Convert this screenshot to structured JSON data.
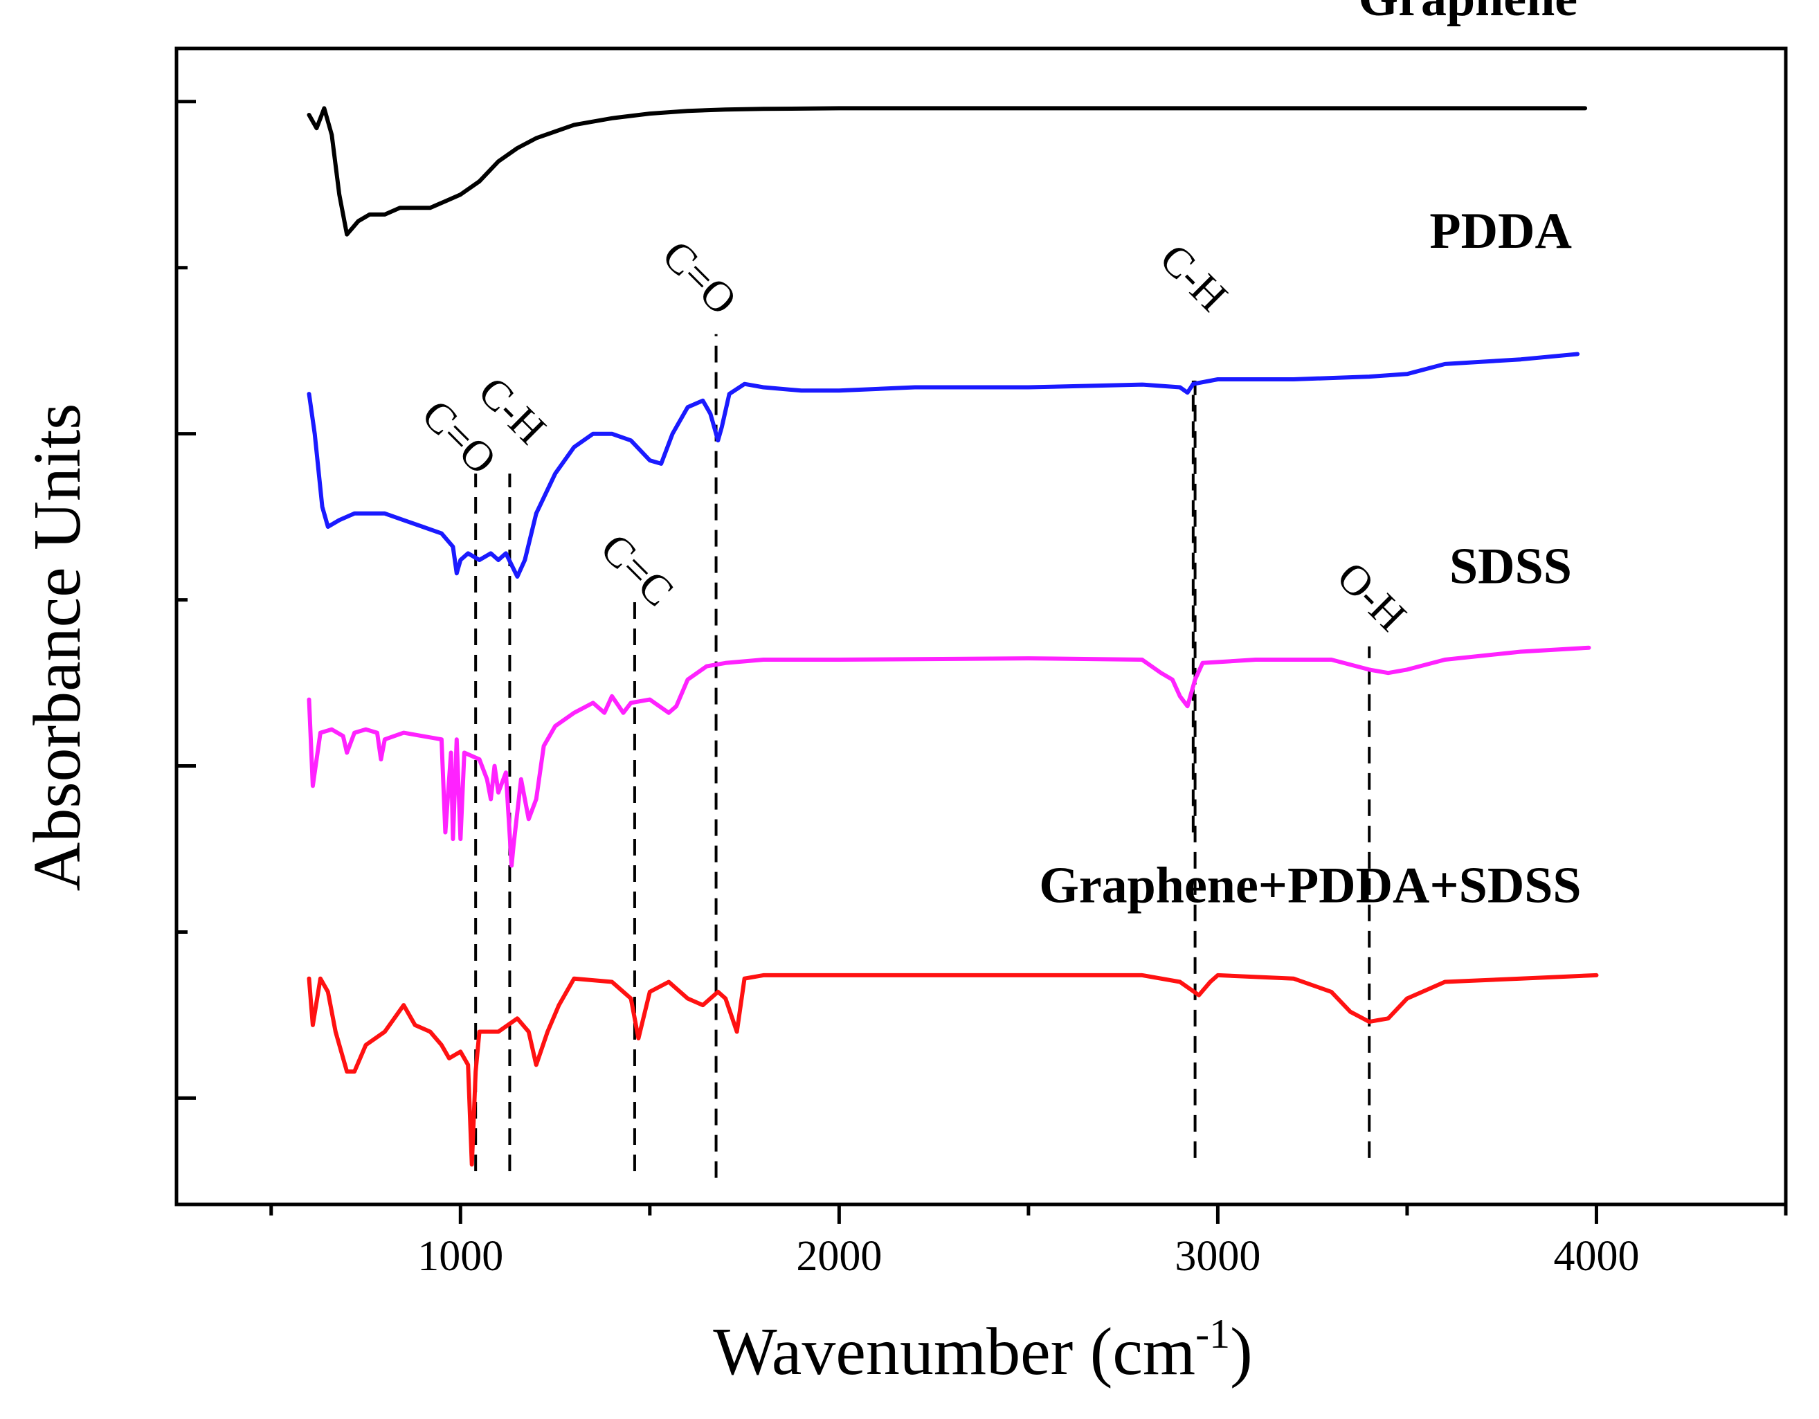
{
  "chart_data": {
    "type": "line",
    "title": "",
    "xlabel": "Wavenumber (cm",
    "xlabel_sup": "-1",
    "xlabel_close": ")",
    "ylabel": "Absorbance Units",
    "xlim": [
      250,
      4500
    ],
    "ylim": [
      -0.6,
      16.8
    ],
    "xticks": [
      1000,
      2000,
      3000,
      4000
    ],
    "xtick_labels": [
      "1000",
      "2000",
      "3000",
      "4000"
    ],
    "y_major_ticks": [
      1,
      6,
      11,
      16
    ],
    "y_minor_ticks": [
      3.5,
      8.5,
      13.5
    ],
    "y_tick_labels_shown": false,
    "grid": false,
    "legend": "none (series labelled inline on the right)",
    "series": [
      {
        "name": "Graphene",
        "label": "Graphene",
        "color": "#000000",
        "points": [
          [
            600,
            15.8
          ],
          [
            620,
            15.6
          ],
          [
            640,
            15.9
          ],
          [
            660,
            15.5
          ],
          [
            680,
            14.6
          ],
          [
            700,
            14.0
          ],
          [
            730,
            14.2
          ],
          [
            760,
            14.3
          ],
          [
            800,
            14.3
          ],
          [
            840,
            14.4
          ],
          [
            880,
            14.4
          ],
          [
            920,
            14.4
          ],
          [
            960,
            14.5
          ],
          [
            1000,
            14.6
          ],
          [
            1050,
            14.8
          ],
          [
            1100,
            15.1
          ],
          [
            1150,
            15.3
          ],
          [
            1200,
            15.45
          ],
          [
            1250,
            15.55
          ],
          [
            1300,
            15.65
          ],
          [
            1400,
            15.75
          ],
          [
            1500,
            15.82
          ],
          [
            1600,
            15.86
          ],
          [
            1700,
            15.88
          ],
          [
            1800,
            15.89
          ],
          [
            2000,
            15.9
          ],
          [
            2500,
            15.9
          ],
          [
            3000,
            15.9
          ],
          [
            3500,
            15.9
          ],
          [
            3970,
            15.9
          ]
        ]
      },
      {
        "name": "PDDA",
        "label": "PDDA",
        "color": "#1a1aff",
        "points": [
          [
            600,
            11.6
          ],
          [
            615,
            11.0
          ],
          [
            635,
            9.9
          ],
          [
            650,
            9.6
          ],
          [
            680,
            9.7
          ],
          [
            720,
            9.8
          ],
          [
            760,
            9.8
          ],
          [
            800,
            9.8
          ],
          [
            850,
            9.7
          ],
          [
            900,
            9.6
          ],
          [
            950,
            9.5
          ],
          [
            980,
            9.3
          ],
          [
            990,
            8.9
          ],
          [
            1000,
            9.1
          ],
          [
            1020,
            9.2
          ],
          [
            1050,
            9.1
          ],
          [
            1080,
            9.2
          ],
          [
            1100,
            9.1
          ],
          [
            1120,
            9.2
          ],
          [
            1150,
            8.85
          ],
          [
            1170,
            9.1
          ],
          [
            1200,
            9.8
          ],
          [
            1250,
            10.4
          ],
          [
            1300,
            10.8
          ],
          [
            1350,
            11.0
          ],
          [
            1400,
            11.0
          ],
          [
            1450,
            10.9
          ],
          [
            1500,
            10.6
          ],
          [
            1530,
            10.55
          ],
          [
            1560,
            11.0
          ],
          [
            1600,
            11.4
          ],
          [
            1640,
            11.5
          ],
          [
            1660,
            11.3
          ],
          [
            1680,
            10.9
          ],
          [
            1690,
            11.1
          ],
          [
            1710,
            11.6
          ],
          [
            1750,
            11.75
          ],
          [
            1800,
            11.7
          ],
          [
            1900,
            11.65
          ],
          [
            2000,
            11.65
          ],
          [
            2200,
            11.7
          ],
          [
            2500,
            11.7
          ],
          [
            2800,
            11.74
          ],
          [
            2900,
            11.7
          ],
          [
            2920,
            11.62
          ],
          [
            2935,
            11.75
          ],
          [
            3000,
            11.82
          ],
          [
            3200,
            11.82
          ],
          [
            3400,
            11.86
          ],
          [
            3500,
            11.9
          ],
          [
            3600,
            12.05
          ],
          [
            3800,
            12.12
          ],
          [
            3950,
            12.2
          ]
        ]
      },
      {
        "name": "SDSS",
        "label": "SDSS",
        "color": "#ff22ff",
        "points": [
          [
            600,
            7.0
          ],
          [
            610,
            5.7
          ],
          [
            630,
            6.5
          ],
          [
            660,
            6.55
          ],
          [
            690,
            6.45
          ],
          [
            700,
            6.2
          ],
          [
            720,
            6.5
          ],
          [
            750,
            6.55
          ],
          [
            780,
            6.5
          ],
          [
            790,
            6.1
          ],
          [
            800,
            6.4
          ],
          [
            850,
            6.5
          ],
          [
            900,
            6.45
          ],
          [
            950,
            6.4
          ],
          [
            960,
            5.0
          ],
          [
            975,
            6.2
          ],
          [
            980,
            4.9
          ],
          [
            990,
            6.4
          ],
          [
            1000,
            4.9
          ],
          [
            1010,
            6.2
          ],
          [
            1050,
            6.1
          ],
          [
            1070,
            5.8
          ],
          [
            1080,
            5.5
          ],
          [
            1090,
            6.0
          ],
          [
            1100,
            5.6
          ],
          [
            1120,
            5.9
          ],
          [
            1135,
            4.5
          ],
          [
            1140,
            4.8
          ],
          [
            1160,
            5.8
          ],
          [
            1180,
            5.2
          ],
          [
            1200,
            5.5
          ],
          [
            1220,
            6.3
          ],
          [
            1250,
            6.6
          ],
          [
            1300,
            6.8
          ],
          [
            1350,
            6.95
          ],
          [
            1380,
            6.8
          ],
          [
            1400,
            7.05
          ],
          [
            1430,
            6.8
          ],
          [
            1450,
            6.95
          ],
          [
            1500,
            7.0
          ],
          [
            1550,
            6.8
          ],
          [
            1570,
            6.9
          ],
          [
            1600,
            7.3
          ],
          [
            1650,
            7.5
          ],
          [
            1700,
            7.55
          ],
          [
            1800,
            7.6
          ],
          [
            2000,
            7.6
          ],
          [
            2500,
            7.62
          ],
          [
            2800,
            7.6
          ],
          [
            2850,
            7.4
          ],
          [
            2880,
            7.3
          ],
          [
            2900,
            7.05
          ],
          [
            2920,
            6.9
          ],
          [
            2940,
            7.3
          ],
          [
            2960,
            7.55
          ],
          [
            3100,
            7.6
          ],
          [
            3300,
            7.6
          ],
          [
            3400,
            7.45
          ],
          [
            3450,
            7.4
          ],
          [
            3500,
            7.45
          ],
          [
            3600,
            7.6
          ],
          [
            3800,
            7.72
          ],
          [
            3980,
            7.78
          ]
        ]
      },
      {
        "name": "Graphene+PDDA+SDSS",
        "label": "Graphene+PDDA+SDSS",
        "color": "#ff1111",
        "points": [
          [
            600,
            2.8
          ],
          [
            610,
            2.1
          ],
          [
            630,
            2.8
          ],
          [
            650,
            2.6
          ],
          [
            670,
            2.0
          ],
          [
            700,
            1.4
          ],
          [
            720,
            1.4
          ],
          [
            750,
            1.8
          ],
          [
            800,
            2.0
          ],
          [
            850,
            2.4
          ],
          [
            880,
            2.1
          ],
          [
            920,
            2.0
          ],
          [
            950,
            1.8
          ],
          [
            970,
            1.6
          ],
          [
            1000,
            1.7
          ],
          [
            1020,
            1.5
          ],
          [
            1030,
            0.0
          ],
          [
            1040,
            1.4
          ],
          [
            1050,
            2.0
          ],
          [
            1100,
            2.0
          ],
          [
            1150,
            2.2
          ],
          [
            1180,
            2.0
          ],
          [
            1200,
            1.5
          ],
          [
            1230,
            2.0
          ],
          [
            1260,
            2.4
          ],
          [
            1300,
            2.8
          ],
          [
            1400,
            2.75
          ],
          [
            1450,
            2.5
          ],
          [
            1470,
            1.9
          ],
          [
            1500,
            2.6
          ],
          [
            1550,
            2.75
          ],
          [
            1600,
            2.5
          ],
          [
            1640,
            2.4
          ],
          [
            1680,
            2.6
          ],
          [
            1700,
            2.5
          ],
          [
            1730,
            2.0
          ],
          [
            1750,
            2.8
          ],
          [
            1800,
            2.85
          ],
          [
            2000,
            2.85
          ],
          [
            2500,
            2.85
          ],
          [
            2800,
            2.85
          ],
          [
            2900,
            2.75
          ],
          [
            2950,
            2.55
          ],
          [
            2980,
            2.75
          ],
          [
            3000,
            2.85
          ],
          [
            3200,
            2.8
          ],
          [
            3300,
            2.6
          ],
          [
            3350,
            2.3
          ],
          [
            3400,
            2.15
          ],
          [
            3450,
            2.2
          ],
          [
            3500,
            2.5
          ],
          [
            3600,
            2.75
          ],
          [
            3800,
            2.8
          ],
          [
            4000,
            2.85
          ]
        ]
      }
    ],
    "reference_lines": [
      {
        "x": 1040,
        "y_from": -0.1,
        "y_to": 10.4
      },
      {
        "x": 1130,
        "y_from": -0.1,
        "y_to": 10.4
      },
      {
        "x": 1460,
        "y_from": -0.1,
        "y_to": 8.6
      },
      {
        "x": 1675,
        "y_from": -0.2,
        "y_to": 12.5
      },
      {
        "x": 2940,
        "y_from": 0.1,
        "y_to": 11.8
      },
      {
        "x": 2935,
        "y_from": 5.0,
        "y_to": 11.8
      },
      {
        "x": 3400,
        "y_from": 0.1,
        "y_to": 7.8
      }
    ],
    "annotations": [
      {
        "text": "C=O",
        "x": 970,
        "y": 10.8
      },
      {
        "text": "C-H",
        "x": 1110,
        "y": 11.2
      },
      {
        "text": "C=O",
        "x": 1605,
        "y": 13.2
      },
      {
        "text": "C=C",
        "x": 1440,
        "y": 8.8
      },
      {
        "text": "C-H",
        "x": 2910,
        "y": 13.2
      },
      {
        "text": "O-H",
        "x": 3380,
        "y": 8.4
      }
    ],
    "series_labels": [
      {
        "text": "Graphene",
        "x": 3950,
        "y": 17.3
      },
      {
        "text": "PDDA",
        "x": 3935,
        "y": 13.8
      },
      {
        "text": "SDSS",
        "x": 3935,
        "y": 8.75
      },
      {
        "text": "Graphene+PDDA+SDSS",
        "x": 3960,
        "y": 3.95
      }
    ]
  }
}
